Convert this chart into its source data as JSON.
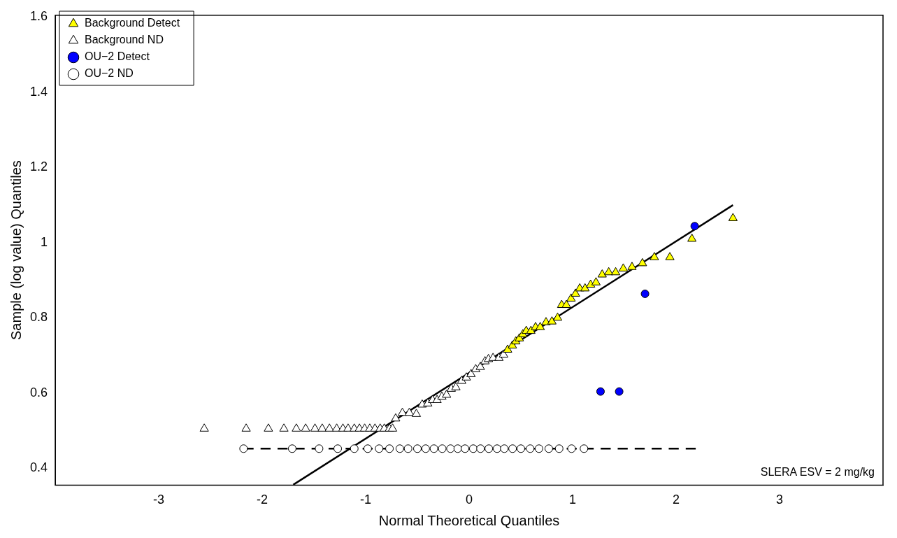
{
  "chart_data": {
    "type": "scatter",
    "xlabel": "Normal Theoretical Quantiles",
    "ylabel": "Sample (log value) Quantiles",
    "xlim": [
      -4,
      4
    ],
    "xticks": [
      -3,
      -2,
      -1,
      0,
      1,
      2,
      3
    ],
    "ylim": [
      0.355,
      1.605
    ],
    "yticks": [
      0.4,
      0.6,
      0.8,
      1,
      1.2,
      1.4,
      1.6
    ],
    "grid": false,
    "legend": "top left",
    "annotations": [
      "SLERA ESV = 2 mg/kg"
    ],
    "series": [
      {
        "name": "Background Detect",
        "marker": "triangle",
        "color": "#ffff00",
        "x": [
          0.372,
          0.418,
          0.451,
          0.485,
          0.519,
          0.552,
          0.597,
          0.642,
          0.687,
          0.743,
          0.8,
          0.855,
          0.894,
          0.94,
          0.985,
          1.028,
          1.069,
          1.12,
          1.174,
          1.226,
          1.286,
          1.349,
          1.416,
          1.49,
          1.574,
          1.675,
          1.79,
          1.94,
          2.153,
          2.55
        ],
        "values": [
          0.715,
          0.726,
          0.737,
          0.745,
          0.756,
          0.765,
          0.765,
          0.775,
          0.775,
          0.788,
          0.79,
          0.8,
          0.834,
          0.834,
          0.851,
          0.864,
          0.878,
          0.878,
          0.888,
          0.894,
          0.915,
          0.921,
          0.921,
          0.931,
          0.935,
          0.945,
          0.961,
          0.961,
          1.01,
          1.065
        ]
      },
      {
        "name": "Background ND",
        "marker": "triangle",
        "color": "#ffffff",
        "x": [
          -2.56,
          -2.155,
          -1.94,
          -1.79,
          -1.67,
          -1.58,
          -1.49,
          -1.42,
          -1.35,
          -1.28,
          -1.22,
          -1.17,
          -1.11,
          -1.06,
          -1.01,
          -0.96,
          -0.91,
          -0.86,
          -0.82,
          -0.77,
          -0.74,
          -0.71,
          -0.645,
          -0.578,
          -0.51,
          -0.454,
          -0.4,
          -0.353,
          -0.31,
          -0.263,
          -0.218,
          -0.173,
          -0.128,
          -0.072,
          -0.027,
          0.018,
          0.063,
          0.108,
          0.153,
          0.187,
          0.231,
          0.288,
          0.333
        ],
        "values": [
          0.505,
          0.505,
          0.505,
          0.505,
          0.505,
          0.505,
          0.505,
          0.505,
          0.505,
          0.505,
          0.505,
          0.505,
          0.505,
          0.505,
          0.505,
          0.505,
          0.505,
          0.505,
          0.505,
          0.505,
          0.505,
          0.532,
          0.547,
          0.547,
          0.544,
          0.569,
          0.572,
          0.581,
          0.581,
          0.59,
          0.595,
          0.611,
          0.615,
          0.632,
          0.641,
          0.65,
          0.663,
          0.669,
          0.684,
          0.69,
          0.693,
          0.693,
          0.702
        ]
      },
      {
        "name": "OU−2 Detect",
        "marker": "circle",
        "color": "#0000ff",
        "x": [
          1.27,
          1.45,
          1.7,
          2.18
        ],
        "values": [
          0.604,
          0.604,
          0.864,
          1.044
        ]
      },
      {
        "name": "OU−2 ND",
        "marker": "circle",
        "color": "#ffffff",
        "x": [
          -2.18,
          -1.71,
          -1.45,
          -1.27,
          -1.11,
          -0.98,
          -0.87,
          -0.77,
          -0.67,
          -0.59,
          -0.5,
          -0.42,
          -0.34,
          -0.26,
          -0.18,
          -0.11,
          -0.04,
          0.04,
          0.11,
          0.19,
          0.27,
          0.34,
          0.42,
          0.5,
          0.59,
          0.675,
          0.77,
          0.87,
          0.99,
          1.11
        ],
        "values": [
          0.452,
          0.452,
          0.452,
          0.452,
          0.452,
          0.452,
          0.452,
          0.452,
          0.452,
          0.452,
          0.452,
          0.452,
          0.452,
          0.452,
          0.452,
          0.452,
          0.452,
          0.452,
          0.452,
          0.452,
          0.452,
          0.452,
          0.452,
          0.452,
          0.452,
          0.452,
          0.452,
          0.452,
          0.452,
          0.452
        ]
      },
      {
        "type": "line",
        "marker": "none",
        "line_style": "solid",
        "color": "#000000",
        "x": [
          -1.7,
          2.55
        ],
        "values": [
          0.356,
          1.1
        ]
      },
      {
        "type": "line",
        "marker": "none",
        "line_style": "dashed",
        "color": "#000000",
        "x": [
          -2.18,
          2.19
        ],
        "values": [
          0.452,
          0.452
        ]
      }
    ]
  }
}
